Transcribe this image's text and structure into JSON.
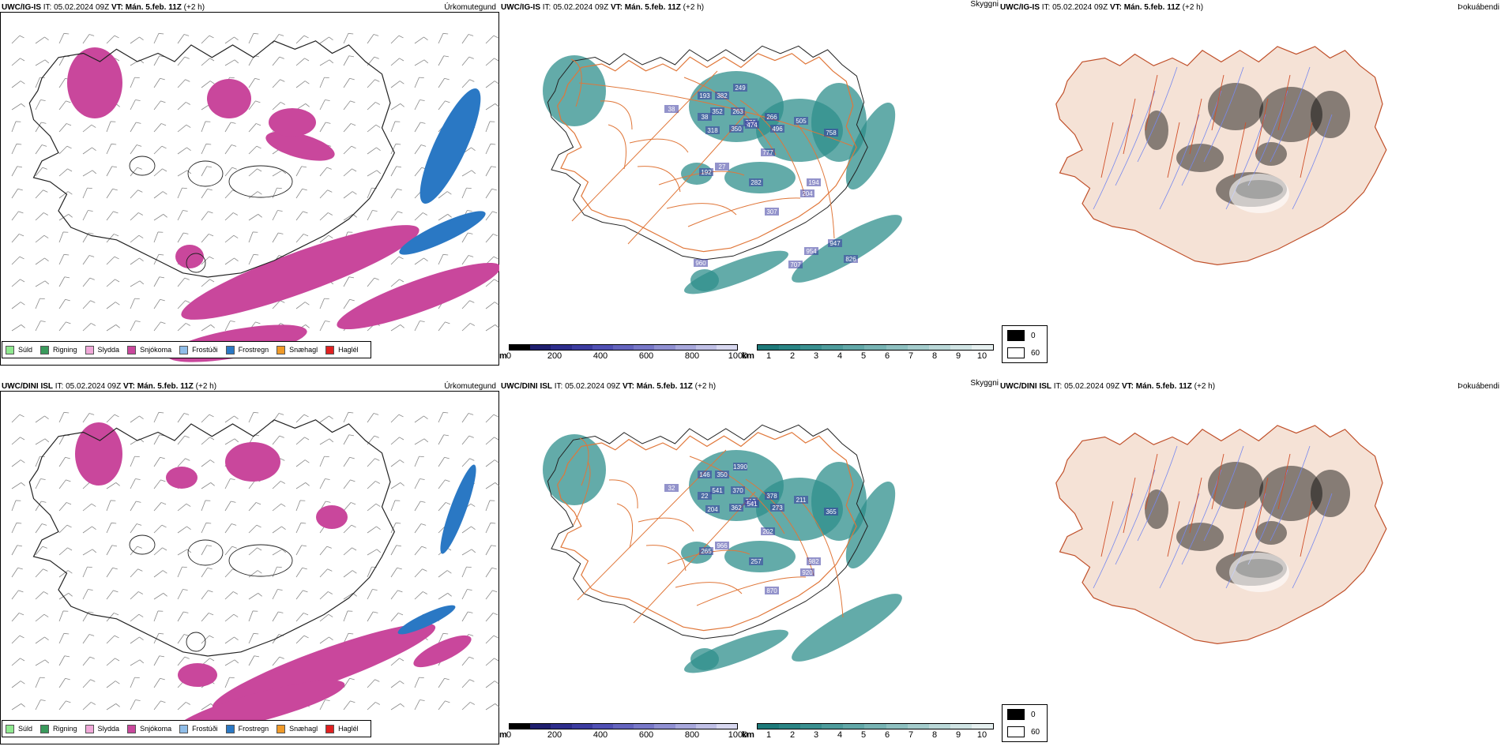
{
  "rows": [
    {
      "model": "UWC/IG-IS",
      "it_label": "IT:",
      "it_value": "05.02.2024 09Z",
      "vt_label": "VT:",
      "vt_value": "Mán. 5.feb. 11Z",
      "lead": "(+2 h)",
      "titles": {
        "precip": "Úrkomutegund",
        "vis": "Skyggni",
        "fog": "Þokuábendi"
      },
      "vis_labels": [
        "193",
        "382",
        "249",
        "38",
        "38",
        "352",
        "263",
        "376",
        "318",
        "350",
        "266",
        "474",
        "496",
        "505",
        "758",
        "777",
        "192",
        "27",
        "282",
        "194",
        "204",
        "307",
        "960",
        "954",
        "947",
        "826",
        "707"
      ]
    },
    {
      "model": "UWC/DINI ISL",
      "it_label": "IT:",
      "it_value": "05.02.2024 09Z",
      "vt_label": "VT:",
      "vt_value": "Mán. 5.feb. 11Z",
      "lead": "(+2 h)",
      "titles": {
        "precip": "Úrkomutegund",
        "vis": "Skyggni",
        "fog": "Þokuábendi"
      },
      "vis_labels": [
        "146",
        "350",
        "1390",
        "32",
        "22",
        "541",
        "370",
        "312",
        "204",
        "362",
        "378",
        "541",
        "273",
        "211",
        "365",
        "202",
        "265",
        "966",
        "257",
        "982",
        "920",
        "870"
      ]
    }
  ],
  "precip_legend": [
    {
      "label": "Súld",
      "color": "#8fe88f"
    },
    {
      "label": "Rigning",
      "color": "#3a9a5c"
    },
    {
      "label": "Slydda",
      "color": "#f0a8d8"
    },
    {
      "label": "Snjókoma",
      "color": "#c9479c"
    },
    {
      "label": "Frostúði",
      "color": "#8fbde8"
    },
    {
      "label": "Frostregn",
      "color": "#2a78c4"
    },
    {
      "label": "Snæhagl",
      "color": "#f09a28"
    },
    {
      "label": "Haglél",
      "color": "#e02020"
    }
  ],
  "ceiling_bar": {
    "unit": "m",
    "ticks": [
      "0",
      "200",
      "400",
      "600",
      "800",
      "1000"
    ],
    "colors": [
      "#000000",
      "#1e1e6e",
      "#2d2d8c",
      "#3c3ca0",
      "#5050b4",
      "#6464be",
      "#7878c8",
      "#9090d2",
      "#a8a8dc",
      "#c0c0e6",
      "#d8d8f0"
    ]
  },
  "visibility_bar": {
    "unit": "km",
    "ticks": [
      "1",
      "2",
      "3",
      "4",
      "5",
      "6",
      "7",
      "8",
      "9",
      "10"
    ],
    "colors": [
      "#1e7a7a",
      "#2a8585",
      "#3a9090",
      "#4e9c9c",
      "#62a8a8",
      "#78b4b4",
      "#8ec0c0",
      "#a4cccc",
      "#bad8d8",
      "#d0e4e4",
      "#e6f0f0"
    ]
  },
  "fog_legend": [
    {
      "label": "0",
      "color": "#000000"
    },
    {
      "label": "60",
      "color": "#ffffff"
    }
  ],
  "colors": {
    "snow": "#c9479c",
    "freezing_rain": "#2a78c4",
    "vis_teal": "#2f8f8c",
    "vis_label_bg": "#3a3aa0",
    "fog_land": "#f5e2d6",
    "roads": "#e0773a",
    "rivers": "#7788ee",
    "coast": "#222222"
  }
}
